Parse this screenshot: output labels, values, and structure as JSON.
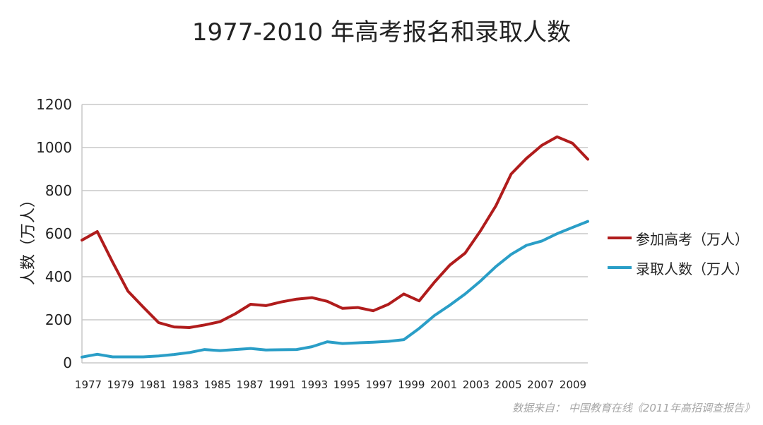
{
  "chart_data": {
    "type": "line",
    "title": "1977-2010 年高考报名和录取人数",
    "ylabel": "人数（万人）",
    "xlabel": "",
    "ylim": [
      0,
      1200
    ],
    "yticks": [
      "0",
      "200",
      "400",
      "600",
      "800",
      "1000",
      "1200"
    ],
    "xticks": [
      "1977",
      "1979",
      "1981",
      "1983",
      "1985",
      "1987",
      "1991",
      "1993",
      "1995",
      "1997",
      "1999",
      "2001",
      "2003",
      "2005",
      "2007",
      "2009"
    ],
    "grid": true,
    "legend_position": "right",
    "x": [
      1977,
      1978,
      1979,
      1980,
      1981,
      1982,
      1983,
      1984,
      1985,
      1986,
      1987,
      1988,
      1989,
      1990,
      1991,
      1992,
      1993,
      1994,
      1995,
      1996,
      1997,
      1998,
      1999,
      2000,
      2001,
      2002,
      2003,
      2004,
      2005,
      2006,
      2007,
      2008,
      2009,
      2010
    ],
    "series": [
      {
        "name": "参加高考（万人）",
        "color": "#b01c1c",
        "values": [
          570,
          610,
          468,
          333,
          259,
          187,
          167,
          164,
          176,
          191,
          228,
          272,
          266,
          283,
          296,
          303,
          286,
          253,
          257,
          242,
          272,
          320,
          288,
          375,
          454,
          510,
          613,
          729,
          877,
          950,
          1010,
          1050,
          1020,
          946
        ]
      },
      {
        "name": "录取人数（万人）",
        "color": "#2a9ec7",
        "values": [
          27,
          40,
          28,
          28,
          28,
          32,
          39,
          48,
          62,
          57,
          62,
          67,
          60,
          61,
          62,
          75,
          98,
          90,
          93,
          96,
          100,
          108,
          160,
          220,
          268,
          320,
          380,
          447,
          504,
          546,
          566,
          600,
          629,
          657
        ]
      }
    ],
    "source": "数据来自：  中国教育在线《2011年高招调查报告》"
  }
}
